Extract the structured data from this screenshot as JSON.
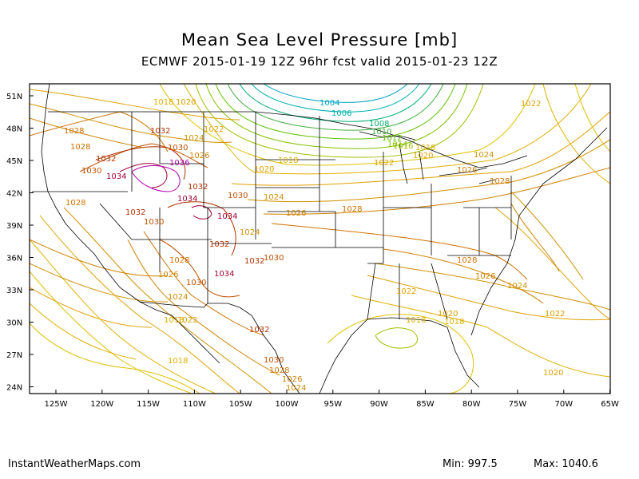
{
  "header": {
    "title": "Mean Sea Level Pressure [mb]",
    "subtitle": "ECMWF 2015-01-19 12Z 96hr fcst valid 2015-01-23 12Z"
  },
  "footer": {
    "site": "InstantWeatherMaps.com",
    "min_label": "Min:",
    "min_value": "997.5",
    "max_label": "Max:",
    "max_value": "1040.6"
  },
  "axes": {
    "lat_labels": [
      "51N",
      "48N",
      "45N",
      "42N",
      "39N",
      "36N",
      "33N",
      "30N",
      "27N",
      "24N"
    ],
    "lon_labels": [
      "125W",
      "120W",
      "115W",
      "110W",
      "105W",
      "100W",
      "95W",
      "90W",
      "85W",
      "80W",
      "75W",
      "70W",
      "65W"
    ]
  },
  "contour_labels": [
    {
      "text": "1018",
      "color": "#e0b000"
    },
    {
      "text": "1020",
      "color": "#e0a000"
    },
    {
      "text": "1022",
      "color": "#e0a000"
    },
    {
      "text": "1028",
      "color": "#d07000"
    },
    {
      "text": "1032",
      "color": "#b03000"
    },
    {
      "text": "1024",
      "color": "#d09000"
    },
    {
      "text": "1030",
      "color": "#c05000"
    },
    {
      "text": "1034",
      "color": "#a00030"
    },
    {
      "text": "1036",
      "color": "#b000b0"
    },
    {
      "text": "1026",
      "color": "#d08000"
    },
    {
      "text": "1004",
      "color": "#00a0c0"
    },
    {
      "text": "1006",
      "color": "#00b0b0"
    },
    {
      "text": "1008",
      "color": "#00b070"
    },
    {
      "text": "1016",
      "color": "#a0c000"
    },
    {
      "text": "1010",
      "color": "#40b040"
    },
    {
      "text": "1012",
      "color": "#60c000"
    },
    {
      "text": "1014",
      "color": "#80c000"
    }
  ],
  "colors": {
    "low": "#00a0c0",
    "mid": "#e0b000",
    "high": "#b000b0",
    "borders": "#000000"
  }
}
